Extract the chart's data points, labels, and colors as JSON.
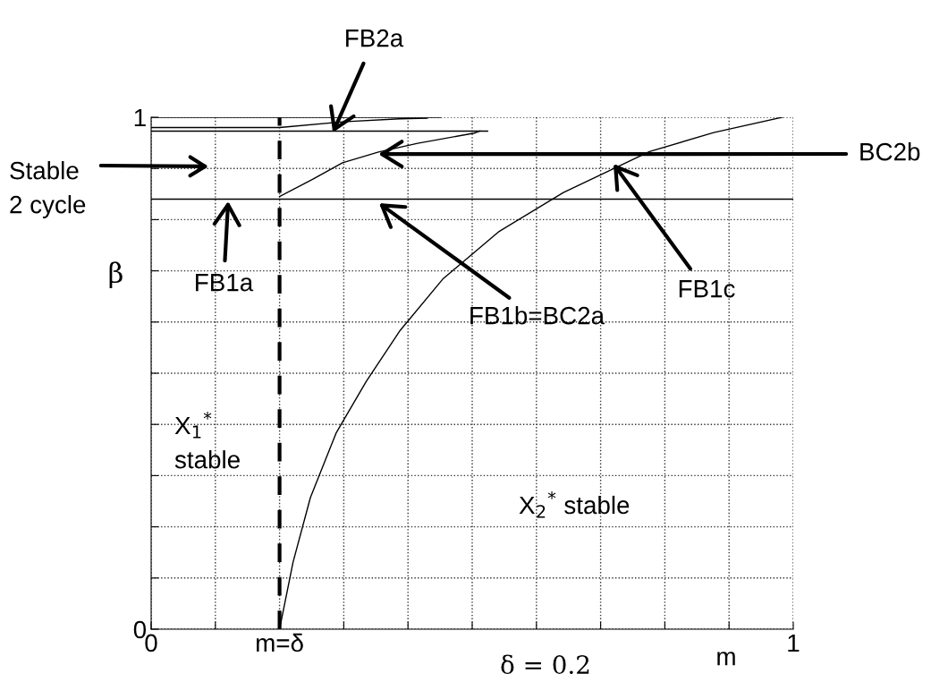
{
  "chart_data": {
    "type": "line",
    "xlabel": "m",
    "ylabel": "β",
    "xlim": [
      0,
      1
    ],
    "ylim": [
      0,
      1
    ],
    "xticks": [
      0,
      {
        "value": 0.1,
        "label": null
      },
      {
        "value": 0.2,
        "label": "m=δ"
      },
      {
        "value": 0.3,
        "label": null
      },
      {
        "value": 0.4,
        "label": null
      },
      {
        "value": 0.5,
        "label": null
      },
      {
        "value": 0.6,
        "label": null
      },
      {
        "value": 0.7,
        "label": null
      },
      {
        "value": 0.8,
        "label": null
      },
      {
        "value": 0.9,
        "label": null
      },
      1
    ],
    "yticks": [
      0,
      {
        "value": 0.1,
        "label": null
      },
      {
        "value": 0.2,
        "label": null
      },
      {
        "value": 0.3,
        "label": null
      },
      {
        "value": 0.4,
        "label": null
      },
      {
        "value": 0.5,
        "label": null
      },
      {
        "value": 0.6,
        "label": null
      },
      {
        "value": 0.7,
        "label": null
      },
      {
        "value": 0.8,
        "label": null
      },
      {
        "value": 0.9,
        "label": null
      },
      1
    ],
    "grid": true,
    "marker": "none",
    "line_style": "solid",
    "series": [
      {
        "color": "#000000",
        "x": [
          0,
          1
        ],
        "values": [
          0.84,
          0.84
        ]
      },
      {
        "color": "#000000",
        "x": [
          0,
          0.451
        ],
        "values": [
          1.0,
          1.0
        ]
      },
      {
        "color": "#000000",
        "x": [
          0,
          0.2,
          0.298,
          0.387,
          0.43
        ],
        "values": [
          0.98,
          0.98,
          0.991,
          0.997,
          0.998
        ]
      },
      {
        "color": "#000000",
        "x": [
          0,
          0.524
        ],
        "values": [
          0.973,
          0.973
        ]
      },
      {
        "color": "#000000",
        "x": [
          0.2,
          0.252,
          0.298,
          0.354,
          0.415,
          0.503,
          0.512
        ],
        "values": [
          0.845,
          0.879,
          0.911,
          0.932,
          0.949,
          0.969,
          0.973
        ]
      },
      {
        "color": "#000000",
        "x": [
          0.2,
          0.221,
          0.248,
          0.288,
          0.335,
          0.388,
          0.455,
          0.542,
          0.642,
          0.776,
          0.876,
          0.983
        ],
        "values": [
          0,
          0.131,
          0.257,
          0.383,
          0.484,
          0.584,
          0.685,
          0.777,
          0.853,
          0.933,
          0.97,
          1.0
        ]
      }
    ],
    "ref_lines": [
      {
        "axis": "x",
        "value": 0.2,
        "color": "#000000",
        "line_style": "dashed"
      }
    ],
    "annotations": [
      {
        "text": "FB2a",
        "x": 0.283,
        "y": 0.97
      },
      "Stable\n2 cycle",
      {
        "text": "BC2b",
        "x": 0.354,
        "y": 0.928
      },
      {
        "text": "FB1a",
        "x": 0.12,
        "y": 0.836
      },
      {
        "text": "FB1b=BC2a",
        "x": 0.355,
        "y": 0.832
      },
      {
        "text": "FB1c",
        "x": 0.72,
        "y": 0.909
      },
      "X$_{1}$$^{*}$\nstable",
      "X$_{2}$$^{*}$ stable",
      "δ = 0.2"
    ]
  }
}
